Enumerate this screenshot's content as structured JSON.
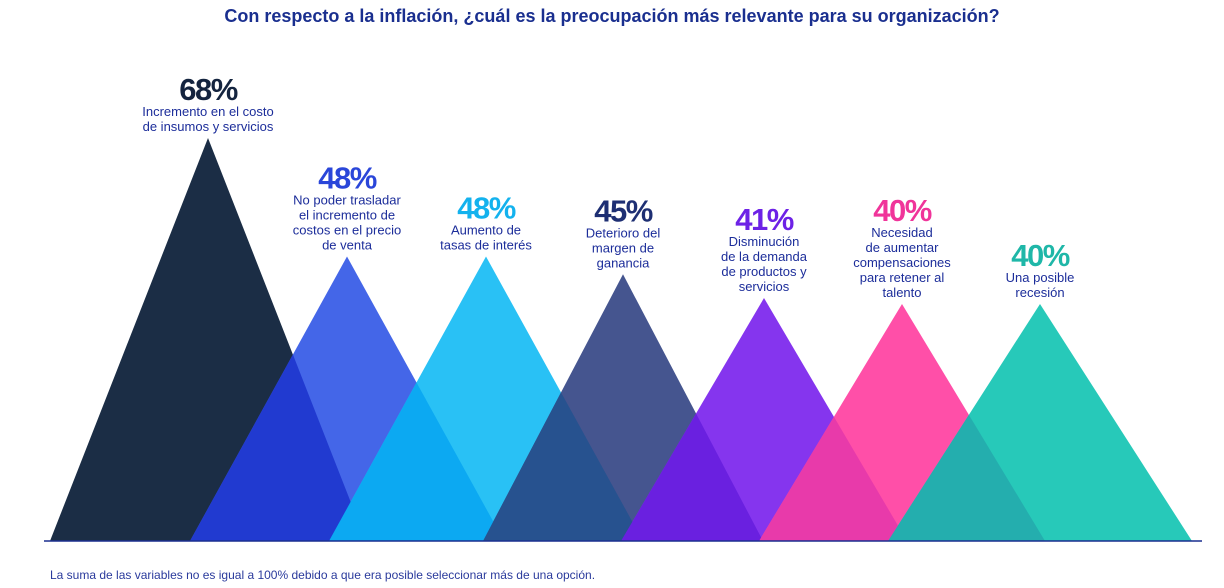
{
  "chart_data": {
    "type": "bar",
    "title": "Con respecto a la inflación, ¿cuál es la preocupación más relevante para su organización?",
    "categories": [
      "Incremento en el costo de insumos y servicios",
      "No poder trasladar el incremento de costos en el precio de venta",
      "Aumento de tasas de interés",
      "Deterioro del margen de ganancia",
      "Disminución de la demanda de productos y servicios",
      "Necesidad de aumentar compensaciones para retener al talento",
      "Una posible recesión"
    ],
    "values": [
      68,
      48,
      48,
      45,
      41,
      40,
      40
    ],
    "value_labels": [
      "68%",
      "48%",
      "48%",
      "45%",
      "41%",
      "40%",
      "40%"
    ],
    "label_lines": [
      [
        "Incremento en el costo",
        "de insumos y servicios"
      ],
      [
        "No poder trasladar",
        "el incremento de",
        "costos en el precio",
        "de venta"
      ],
      [
        "Aumento de",
        "tasas de interés"
      ],
      [
        "Deterioro del",
        "margen de",
        "ganancia"
      ],
      [
        "Disminución",
        "de la demanda",
        "de productos y",
        "servicios"
      ],
      [
        "Necesidad",
        "de aumentar",
        "compensaciones",
        "para retener al",
        "talento"
      ],
      [
        "Una posible",
        "recesión"
      ]
    ],
    "colors": [
      "#1b2d45",
      "#4466e8",
      "#29c1f5",
      "#45558f",
      "#8535ee",
      "#ff4fa8",
      "#27c9b9"
    ],
    "overlap_colors": [
      "#213ad0",
      "#0ca9f2",
      "#27528f",
      "#6a20e0",
      "#e83aaa",
      "#24aeae"
    ],
    "label_colors": [
      "#14243f",
      "#2a46d9",
      "#13b2ee",
      "#1e2f73",
      "#6d22e6",
      "#f0349a",
      "#1fb7a8"
    ],
    "ylim": [
      0,
      68
    ],
    "footnote": "La suma de las variables no es igual a 100% debido a que era posible seleccionar más de una opción."
  }
}
